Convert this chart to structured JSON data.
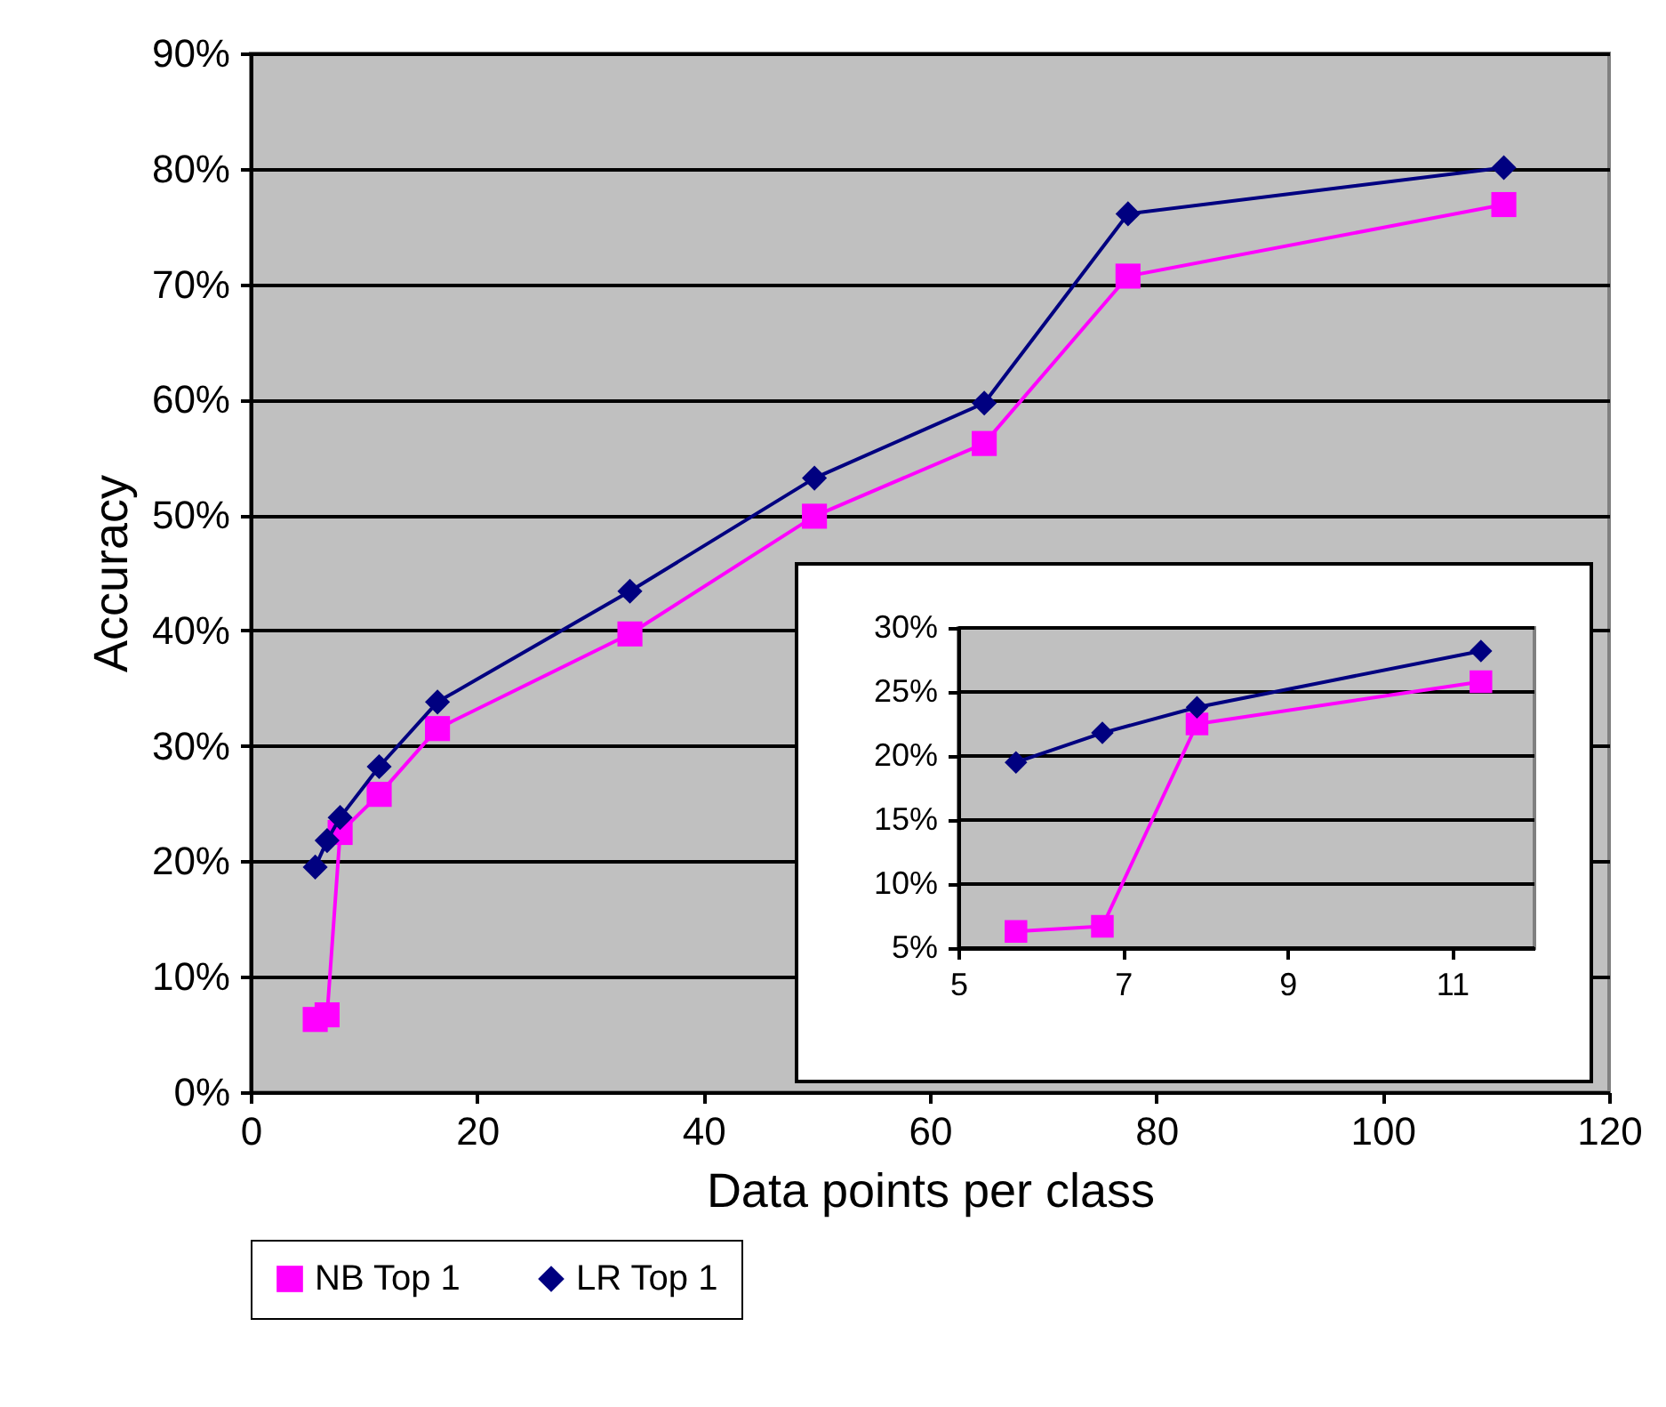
{
  "chart_data": [
    {
      "type": "line",
      "xlabel": "Data points per class",
      "ylabel": "Accuracy",
      "x": [
        5.7,
        6.75,
        7.9,
        11.35,
        16.5,
        33.5,
        49.8,
        64.8,
        77.5,
        110.7
      ],
      "series": [
        {
          "name": "NB Top 1",
          "color": "#ff00ff",
          "marker": "square",
          "values": [
            6.3,
            6.7,
            22.5,
            25.8,
            31.5,
            39.7,
            49.9,
            56.2,
            70.7,
            76.9
          ]
        },
        {
          "name": "LR Top 1",
          "color": "#000080",
          "marker": "diamond",
          "values": [
            19.5,
            21.8,
            23.8,
            28.2,
            33.8,
            43.4,
            53.2,
            59.7,
            76.1,
            80.1
          ]
        }
      ],
      "xlim": [
        0,
        120
      ],
      "xticks": [
        0,
        20,
        40,
        60,
        80,
        100,
        120
      ],
      "ylim": [
        0,
        90
      ],
      "yticks": [
        {
          "value": 0,
          "label": "0%"
        },
        {
          "value": 10,
          "label": "10%"
        },
        {
          "value": 20,
          "label": "20%"
        },
        {
          "value": 30,
          "label": "30%"
        },
        {
          "value": 40,
          "label": "40%"
        },
        {
          "value": 50,
          "label": "50%"
        },
        {
          "value": 60,
          "label": "60%"
        },
        {
          "value": 70,
          "label": "70%"
        },
        {
          "value": 80,
          "label": "80%"
        },
        {
          "value": 90,
          "label": "90%"
        }
      ],
      "grid": "y",
      "legend": "bottom",
      "line_style": "solid"
    },
    {
      "type": "line",
      "x": [
        5.7,
        6.75,
        7.9,
        11.35
      ],
      "series": [
        {
          "color": "#ff00ff",
          "marker": "square",
          "values": [
            6.3,
            6.7,
            22.5,
            25.8
          ]
        },
        {
          "color": "#000080",
          "marker": "diamond",
          "values": [
            19.5,
            21.8,
            23.8,
            28.2
          ]
        }
      ],
      "xlim": [
        5,
        12
      ],
      "xticks": [
        5,
        7,
        9,
        11
      ],
      "ylim": [
        5,
        30
      ],
      "yticks": [
        {
          "value": 5,
          "label": "5%"
        },
        {
          "value": 10,
          "label": "10%"
        },
        {
          "value": 15,
          "label": "15%"
        },
        {
          "value": 20,
          "label": "20%"
        },
        {
          "value": 25,
          "label": "25%"
        },
        {
          "value": 30,
          "label": "30%"
        }
      ],
      "grid": "y",
      "legend": false,
      "line_style": "solid"
    }
  ]
}
